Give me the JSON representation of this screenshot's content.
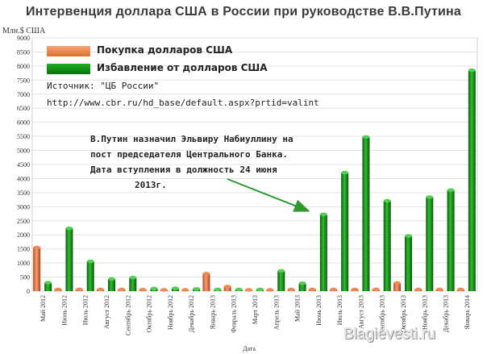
{
  "header": {
    "title": "Интервенция доллара США в России при руководстве В.В.Путина",
    "y_unit": "Млн.$ США"
  },
  "legend": {
    "buy_label": "Покупка долларов США",
    "sell_label": "Избавление от долларов США",
    "source_label": "Источник: \"ЦБ России\"",
    "source_url": "http://www.cbr.ru/hd_base/default.aspx?prtid=valint"
  },
  "annotation": {
    "line1": "В.Путин назначил Эльвиру Набиуллину на",
    "line2": "пост председателя Центрального Банка.",
    "line3": "Дата вступления в должность 24 июня",
    "line4": "2013г."
  },
  "watermark": "Blagievesti.ru",
  "colors": {
    "buy": "#f08a50",
    "buy_dark": "#c2461c",
    "sell": "#18981a",
    "sell_dark": "#0b5e0c",
    "arrow": "#2e9a2e"
  },
  "chart_data": {
    "type": "bar",
    "title": "Интервенция доллара США в России при руководстве В.В.Путина",
    "xlabel": "Дата",
    "ylabel": "Млн.$ США",
    "ylim": [
      0,
      9000
    ],
    "yticks": [
      0,
      500,
      1000,
      1500,
      2000,
      2500,
      3000,
      3500,
      4000,
      4500,
      5000,
      5500,
      6000,
      6500,
      7000,
      7500,
      8000,
      8500,
      9000
    ],
    "grid": true,
    "legend_position": "top-left",
    "categories": [
      "Май 2012",
      "Июнь 2012",
      "Июль 2012",
      "Август 2012",
      "Сентябрь 2012",
      "Октябрь 2012",
      "Ноябрь 2012",
      "Декабрь 2012",
      "Январь 2013",
      "Февраль 2013",
      "Март 2013",
      "Апрель 2013",
      "Май 2013",
      "Июнь 2013",
      "Июль 2013",
      "Август 2013",
      "Сентябрь 2013",
      "Октябрь 2013",
      "Ноябрь 2013",
      "Декабрь 2013",
      "Январь 2014"
    ],
    "series": [
      {
        "name": "Покупка долларов США",
        "values": [
          1550,
          60,
          60,
          60,
          60,
          50,
          40,
          40,
          620,
          160,
          40,
          30,
          60,
          60,
          60,
          60,
          60,
          290,
          60,
          60,
          60
        ]
      },
      {
        "name": "Избавление от долларов США",
        "values": [
          300,
          2230,
          1060,
          430,
          480,
          90,
          100,
          80,
          60,
          60,
          60,
          720,
          280,
          2730,
          4210,
          5480,
          3210,
          1960,
          3340,
          3590,
          7850
        ]
      }
    ]
  }
}
